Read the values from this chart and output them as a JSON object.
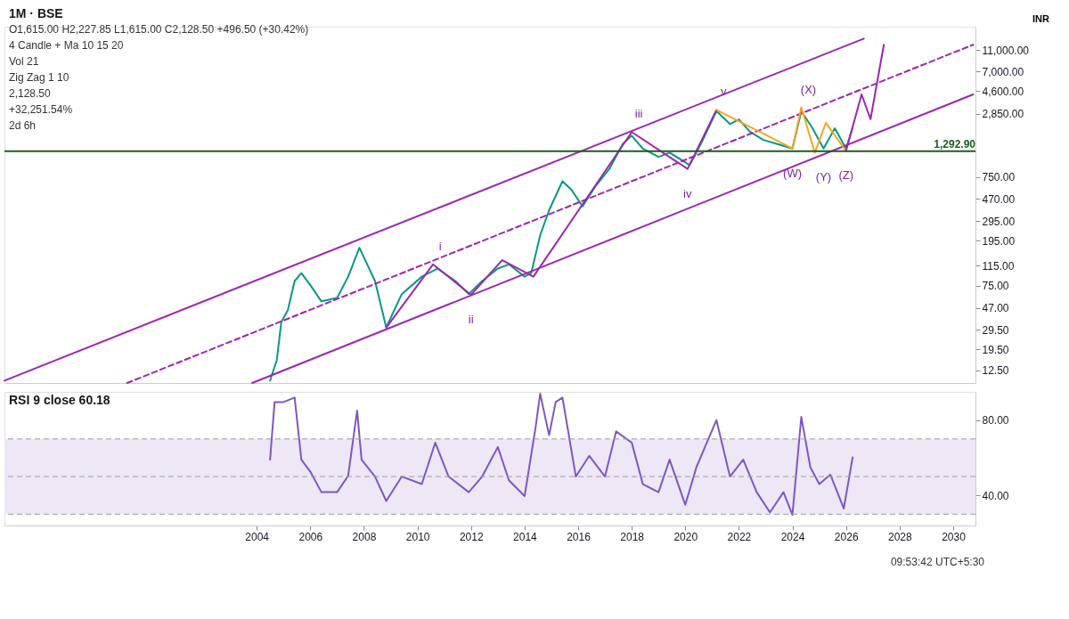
{
  "chart_data": [
    {
      "type": "line",
      "title": "1M · BSE",
      "subtitle": "O1,615.00 H2,227.85 L1,615.00 C2,128.50 +496.50 (+30.42%)",
      "ylabel": "INR",
      "log": true,
      "ylim": [
        9.6,
        18000
      ],
      "yticks": [
        {
          "value": 12.5,
          "label": "12.50"
        },
        {
          "value": 19.5,
          "label": "19.50"
        },
        {
          "value": 29.5,
          "label": "29.50"
        },
        {
          "value": 47,
          "label": "47.00"
        },
        {
          "value": 75,
          "label": "75.00"
        },
        {
          "value": 115,
          "label": "115.00"
        },
        {
          "value": 195,
          "label": "195.00"
        },
        {
          "value": 295,
          "label": "295.00"
        },
        {
          "value": 470,
          "label": "470.00"
        },
        {
          "value": 750,
          "label": "750.00"
        },
        {
          "value": 2850,
          "label": "2,850.00"
        },
        {
          "value": 4600,
          "label": "4,600.00"
        },
        {
          "value": 7000,
          "label": "7,000.00"
        },
        {
          "value": 11000,
          "label": "11,000.00"
        }
      ],
      "xlim": [
        "1994-08",
        "2030-11"
      ],
      "tick_labels": "y",
      "series": [
        {
          "color": "#089981",
          "x": [
            "2004-07",
            "2004-10",
            "2004-12",
            "2005-03",
            "2005-06",
            "2005-09",
            "2006-01",
            "2006-06",
            "2007-01",
            "2007-06",
            "2007-11",
            "2008-06",
            "2008-11",
            "2009-06",
            "2010-03",
            "2010-10",
            "2011-06",
            "2011-12",
            "2012-06",
            "2013-01",
            "2013-06",
            "2014-01",
            "2014-04",
            "2014-08",
            "2014-12",
            "2015-06",
            "2015-10",
            "2016-03",
            "2016-09",
            "2017-03",
            "2017-09",
            "2018-01",
            "2018-06",
            "2019-01",
            "2019-06",
            "2020-03",
            "2020-08",
            "2021-03",
            "2021-09",
            "2022-01",
            "2022-06",
            "2022-12",
            "2023-06",
            "2024-01",
            "2024-05",
            "2024-10",
            "2025-03",
            "2025-08",
            "2026-01",
            "2026-04"
          ],
          "values": [
            10.1,
            15.6,
            34.8,
            45,
            83,
            98,
            76,
            54,
            58,
            91,
            168,
            83,
            31,
            63,
            91,
            108,
            83,
            63,
            83,
            108,
            118,
            91,
            98,
            218,
            371,
            685,
            573,
            403,
            626,
            888,
            1510,
            1795,
            1368,
            1146,
            1256,
            965,
            1510,
            3022,
            2297,
            2530,
            1955,
            1640,
            1510,
            1368,
            3022,
            2100,
            1368,
            2100,
            1368,
            2128.5
          ]
        },
        {
          "color": "#9c27b0",
          "x": [
            "1994-08",
            "2026-09"
          ],
          "values": [
            10.1,
            14000
          ]
        },
        {
          "color": "#9c27b0",
          "line_style": "dashed",
          "x": [
            "1999-03",
            "2030-10"
          ],
          "values": [
            9.6,
            12300
          ]
        },
        {
          "color": "#9c27b0",
          "x": [
            "2003-11",
            "2030-10"
          ],
          "values": [
            9.6,
            4300
          ]
        },
        {
          "color": "#9c27b0",
          "x": [
            "2008-11",
            "2010-08",
            "2012-01",
            "2013-03",
            "2014-05",
            "2018-01",
            "2020-02",
            "2021-03"
          ],
          "values": [
            31,
            118,
            62,
            129,
            91,
            1940,
            890,
            3100
          ]
        },
        {
          "color": "#f5a623",
          "x": [
            "2021-03",
            "2024-01",
            "2024-05",
            "2024-11",
            "2025-04",
            "2026-01"
          ],
          "values": [
            3100,
            1370,
            3270,
            1255,
            2360,
            1300
          ]
        },
        {
          "color": "#9c27b0",
          "x": [
            "2026-01",
            "2026-08",
            "2026-12",
            "2027-06"
          ],
          "values": [
            1300,
            4300,
            2550,
            12300
          ]
        }
      ],
      "ref_lines": [
        {
          "axis": "y",
          "value": 1292.9,
          "label": "1,292.90",
          "color": "#1b5e20"
        }
      ],
      "annotations": [
        "4 Candle + Ma 10 15 20",
        "Vol 21",
        "Zig Zag 1 10",
        "2,128.50",
        "+32,251.54%",
        "2d 6h",
        {
          "text": "i",
          "x": "2010-08",
          "y": 118
        },
        {
          "text": "ii",
          "x": "2012-01",
          "y": 62
        },
        {
          "text": "iii",
          "x": "2018-01",
          "y": 1940
        },
        {
          "text": "iv",
          "x": "2020-02",
          "y": 890
        },
        {
          "text": "v",
          "x": "2021-03",
          "y": 3100
        },
        {
          "text": "(W)",
          "x": "2024-01",
          "y": 1370
        },
        {
          "text": "(X)",
          "x": "2024-05",
          "y": 3270
        },
        {
          "text": "(Y)",
          "x": "2025-03",
          "y": 1255
        },
        {
          "text": "(Z)",
          "x": "2026-01",
          "y": 1300
        }
      ]
    },
    {
      "type": "line",
      "title": "RSI 9 close 60.18",
      "ylim": [
        24,
        95
      ],
      "yticks": [
        {
          "value": 40,
          "label": "40.00"
        },
        {
          "value": 80,
          "label": "80.00"
        }
      ],
      "xlim": [
        "1994-08",
        "2030-11"
      ],
      "xticks": [
        {
          "value": "2004",
          "label": "2004"
        },
        {
          "value": "2006",
          "label": "2006"
        },
        {
          "value": "2008",
          "label": "2008"
        },
        {
          "value": "2010",
          "label": "2010"
        },
        {
          "value": "2012",
          "label": "2012"
        },
        {
          "value": "2014",
          "label": "2014"
        },
        {
          "value": "2016",
          "label": "2016"
        },
        {
          "value": "2018",
          "label": "2018"
        },
        {
          "value": "2020",
          "label": "2020"
        },
        {
          "value": "2022",
          "label": "2022"
        },
        {
          "value": "2024",
          "label": "2024"
        },
        {
          "value": "2026",
          "label": "2026"
        },
        {
          "value": "2028",
          "label": "2028"
        },
        {
          "value": "2030",
          "label": "2030"
        }
      ],
      "bands": [
        {
          "axis": "y",
          "from": 30,
          "to": 70,
          "color": "#ede7f6"
        }
      ],
      "ref_lines": [
        {
          "axis": "y",
          "value": 70,
          "color": "#9e9e9e",
          "line_style": "dashed"
        },
        {
          "axis": "y",
          "value": 50,
          "color": "#9e9e9e",
          "line_style": "dashed"
        },
        {
          "axis": "y",
          "value": 30,
          "color": "#9e9e9e",
          "line_style": "dashed"
        }
      ],
      "series": [
        {
          "color": "#7e57c2",
          "x": [
            "2004-07",
            "2004-09",
            "2005-01",
            "2005-06",
            "2005-09",
            "2006-01",
            "2006-06",
            "2007-01",
            "2007-06",
            "2007-10",
            "2007-12",
            "2008-06",
            "2008-11",
            "2009-06",
            "2010-03",
            "2010-09",
            "2011-03",
            "2011-12",
            "2012-06",
            "2013-01",
            "2013-06",
            "2014-01",
            "2014-06",
            "2014-08",
            "2014-12",
            "2015-03",
            "2015-06",
            "2015-12",
            "2016-06",
            "2017-01",
            "2017-06",
            "2018-01",
            "2018-06",
            "2019-01",
            "2019-06",
            "2020-01",
            "2020-06",
            "2021-03",
            "2021-09",
            "2022-03",
            "2022-09",
            "2023-03",
            "2023-09",
            "2024-01",
            "2024-05",
            "2024-09",
            "2025-01",
            "2025-06",
            "2025-12",
            "2026-04"
          ],
          "values": [
            59,
            89.6,
            89.6,
            92,
            59,
            52.6,
            41.7,
            41.7,
            50.4,
            85,
            59,
            50,
            37,
            50,
            46,
            68,
            50,
            41.7,
            50,
            65.7,
            48,
            39.6,
            76.5,
            94,
            72,
            89.6,
            92,
            50,
            61,
            50,
            74,
            68,
            46,
            41.7,
            59,
            35,
            55,
            80,
            50,
            59,
            41.7,
            31,
            41.7,
            29.6,
            81.7,
            55,
            46,
            51,
            33,
            60.18
          ]
        }
      ],
      "annotations": [
        "09:53:42 UTC+5:30"
      ]
    }
  ]
}
